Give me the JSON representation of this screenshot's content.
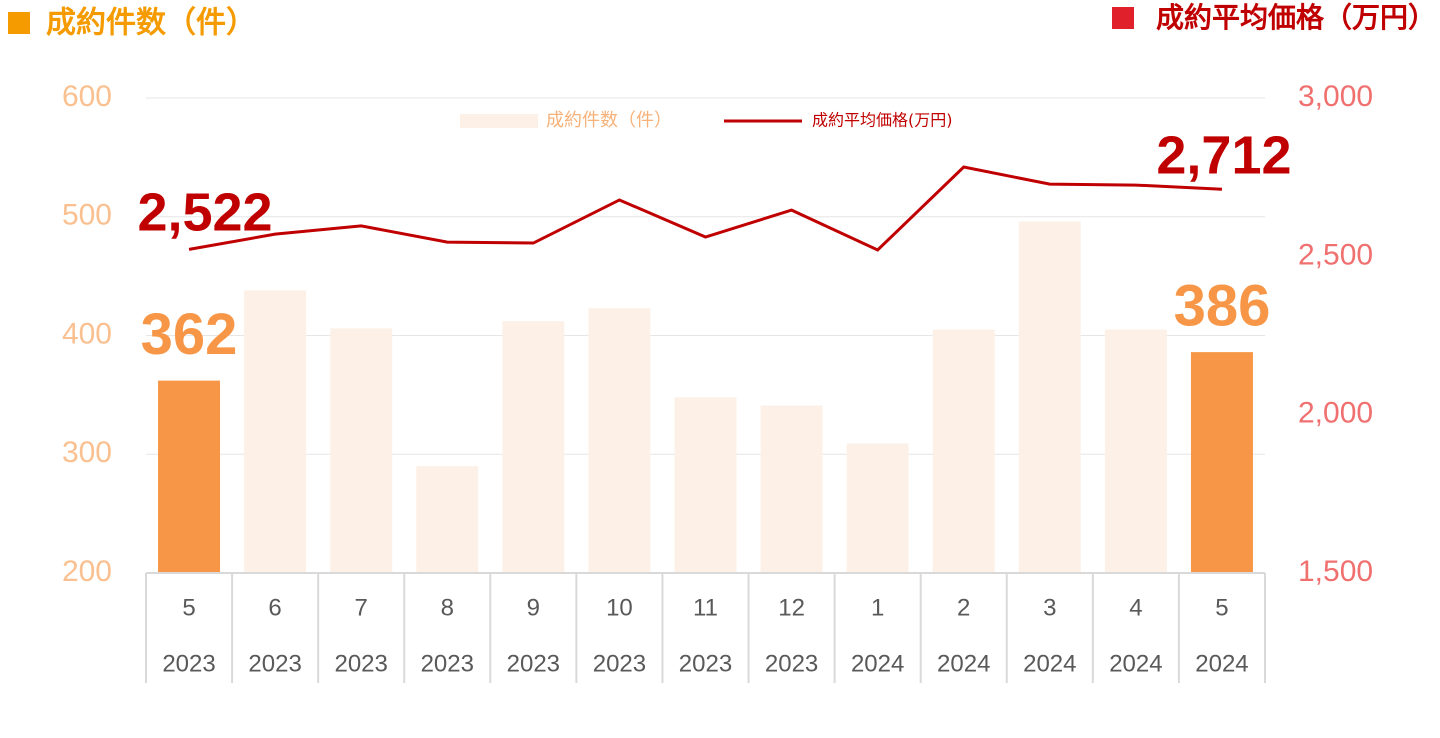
{
  "chart_data": {
    "type": "bar_line",
    "y_label": "成約件数（件）",
    "y2_label": "成約平均価格（万円）",
    "categories": [
      [
        "5",
        "2023"
      ],
      [
        "6",
        "2023"
      ],
      [
        "7",
        "2023"
      ],
      [
        "8",
        "2023"
      ],
      [
        "9",
        "2023"
      ],
      [
        "10",
        "2023"
      ],
      [
        "11",
        "2023"
      ],
      [
        "12",
        "2023"
      ],
      [
        "1",
        "2024"
      ],
      [
        "2",
        "2024"
      ],
      [
        "3",
        "2024"
      ],
      [
        "4",
        "2024"
      ],
      [
        "5",
        "2024"
      ]
    ],
    "series": [
      {
        "name": "成約件数（件）",
        "type": "bar",
        "color": "#fdf1e7",
        "colors": [
          "#f79646",
          "#fdf1e7",
          "#fdf1e7",
          "#fdf1e7",
          "#fdf1e7",
          "#fdf1e7",
          "#fdf1e7",
          "#fdf1e7",
          "#fdf1e7",
          "#fdf1e7",
          "#fdf1e7",
          "#fdf1e7",
          "#f79646"
        ],
        "values": [
          362,
          438,
          406,
          290,
          412,
          423,
          348,
          341,
          309,
          405,
          496,
          405,
          386
        ],
        "value_labels": [
          "362",
          null,
          null,
          null,
          null,
          null,
          null,
          null,
          null,
          null,
          null,
          null,
          "386"
        ]
      },
      {
        "name": "成約平均価格(万円)",
        "type": "line",
        "axis": "y2",
        "color": "#c00000",
        "values": [
          2522,
          2570,
          2596,
          2545,
          2542,
          2678,
          2561,
          2646,
          2520,
          2782,
          2728,
          2725,
          2712
        ],
        "value_labels": [
          "2,522",
          null,
          null,
          null,
          null,
          null,
          null,
          null,
          null,
          null,
          null,
          null,
          "2,712"
        ]
      }
    ],
    "ylim": [
      200,
      600
    ],
    "yticks": [
      200,
      300,
      400,
      500,
      600
    ],
    "y2lim": [
      1500,
      3000
    ],
    "y2ticks": [
      {
        "value": 1500,
        "label": "1,500"
      },
      {
        "value": 2000,
        "label": "2,000"
      },
      {
        "value": 2500,
        "label": "2,500"
      },
      {
        "value": 3000,
        "label": "3,000"
      }
    ],
    "grid": true
  }
}
